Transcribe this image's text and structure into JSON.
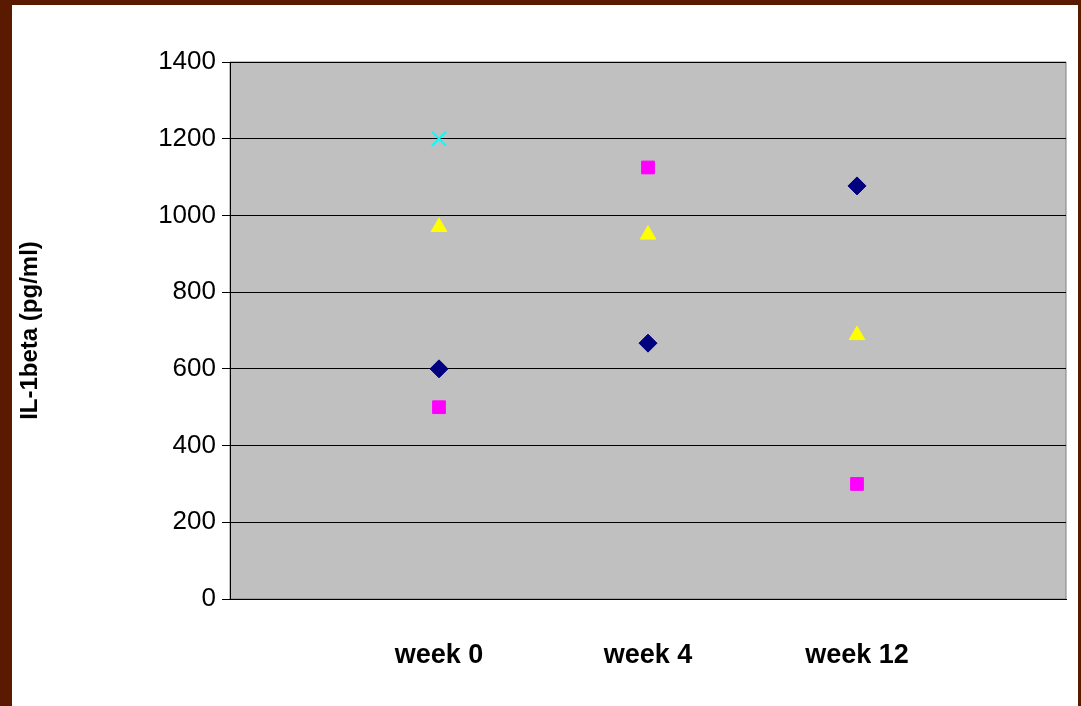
{
  "chart_data": {
    "type": "scatter",
    "ylabel": "IL-1beta (pg/ml)",
    "categories": [
      "week 0",
      "week 4",
      "week 12"
    ],
    "series": [
      {
        "color": "#000080",
        "marker": "diamond",
        "values": [
          600,
          667,
          1077
        ]
      },
      {
        "color": "#ff00ff",
        "marker": "square",
        "values": [
          500,
          1125,
          300
        ]
      },
      {
        "color": "#ffff00",
        "marker": "triangle",
        "values": [
          970,
          950,
          688
        ]
      },
      {
        "color": "#00ffff",
        "marker": "cross",
        "values": [
          1200,
          null,
          null
        ]
      }
    ],
    "ylim": [
      0,
      1400
    ],
    "yticks": [
      0,
      200,
      400,
      600,
      800,
      1000,
      1200,
      1400
    ],
    "grid": "y",
    "legend": false
  }
}
